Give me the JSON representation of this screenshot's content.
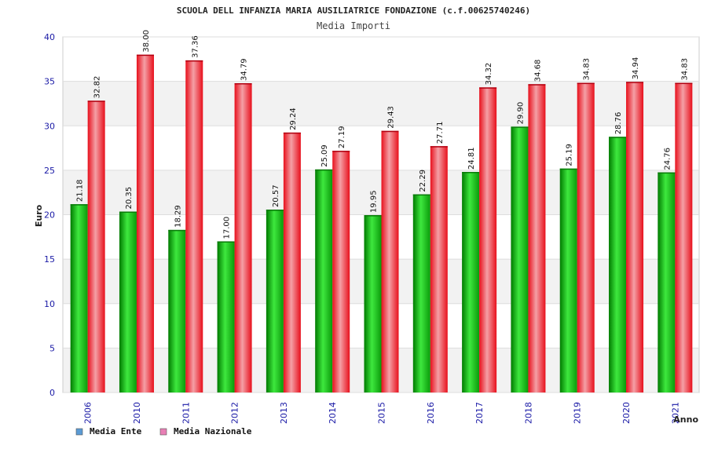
{
  "chart_data": {
    "type": "bar",
    "title": "SCUOLA DELL INFANZIA MARIA AUSILIATRICE FONDAZIONE (c.f.00625740246)",
    "subtitle": "Media Importi",
    "xlabel": "Anno",
    "ylabel": "Euro",
    "ylim": [
      0,
      40
    ],
    "yticks": [
      0,
      5,
      10,
      15,
      20,
      25,
      30,
      35,
      40
    ],
    "grid": true,
    "legend_position": "bottom-left",
    "categories": [
      "2006",
      "2010",
      "2011",
      "2012",
      "2013",
      "2014",
      "2015",
      "2016",
      "2017",
      "2018",
      "2019",
      "2020",
      "2021"
    ],
    "series": [
      {
        "name": "Media Ente",
        "color": "#12b812",
        "legend_color": "#5b9bd5",
        "values": [
          21.18,
          20.35,
          18.29,
          17.0,
          20.57,
          25.09,
          19.95,
          22.29,
          24.81,
          29.9,
          25.19,
          28.76,
          24.76
        ],
        "labels": [
          "21.18",
          "20.35",
          "18.29",
          "17.00",
          "20.57",
          "25.09",
          "19.95",
          "22.29",
          "24.81",
          "29.90",
          "25.19",
          "28.76",
          "24.76"
        ]
      },
      {
        "name": "Media Nazionale",
        "color": "#ee1c24",
        "legend_color": "#e87fb5",
        "values": [
          32.82,
          38.0,
          37.36,
          34.79,
          29.24,
          27.19,
          29.43,
          27.71,
          34.32,
          34.68,
          34.83,
          34.94,
          34.83
        ],
        "labels": [
          "32.82",
          "38.00",
          "37.36",
          "34.79",
          "29.24",
          "27.19",
          "29.43",
          "27.71",
          "34.32",
          "34.68",
          "34.83",
          "34.94",
          "34.83"
        ]
      }
    ]
  }
}
